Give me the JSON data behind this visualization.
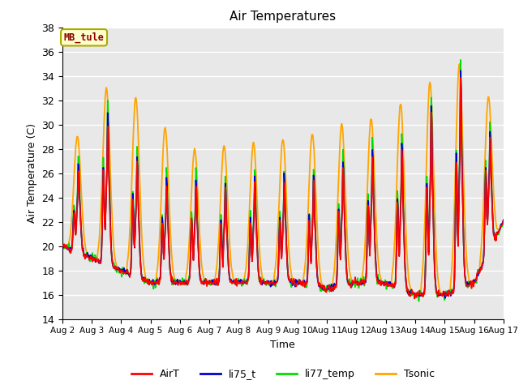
{
  "title": "Air Temperatures",
  "xlabel": "Time",
  "ylabel": "Air Temperature (C)",
  "ylim": [
    14,
    38
  ],
  "yticks": [
    14,
    16,
    18,
    20,
    22,
    24,
    26,
    28,
    30,
    32,
    34,
    36,
    38
  ],
  "station_label": "MB_tule",
  "station_label_color": "#8B0000",
  "station_box_facecolor": "#FFFFCC",
  "station_box_edgecolor": "#AAAA00",
  "background_color": "#E8E8E8",
  "grid_color": "#FFFFFF",
  "series_colors": {
    "AirT": "#FF0000",
    "li75_t": "#0000CC",
    "li77_temp": "#00DD00",
    "Tsonic": "#FFA500"
  },
  "tick_days": [
    2,
    3,
    4,
    5,
    6,
    7,
    8,
    9,
    10,
    11,
    12,
    13,
    14,
    15,
    16,
    17
  ],
  "start_day": 2
}
